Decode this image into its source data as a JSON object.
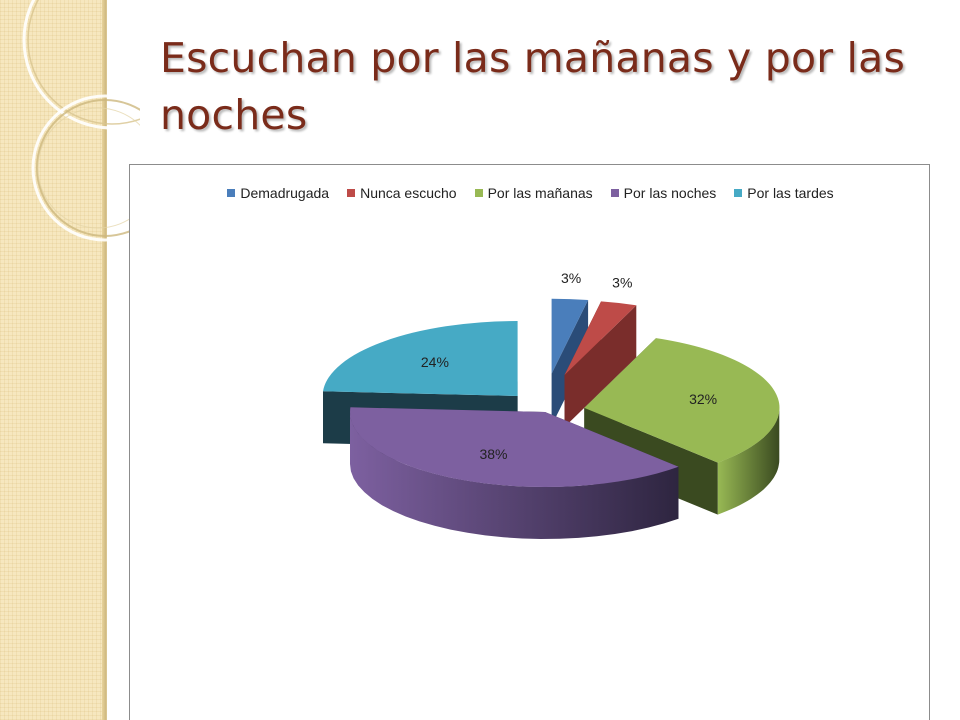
{
  "slide": {
    "title": "Escuchan por las mañanas y por las noches"
  },
  "chart_data": {
    "type": "pie",
    "style": "3d-exploded",
    "title": "",
    "legend_position": "top",
    "categories": [
      "Demadrugada",
      "Nunca escucho",
      "Por las mañanas",
      "Por las noches",
      "Por las tardes"
    ],
    "values": [
      3,
      3,
      32,
      38,
      24
    ],
    "labels": [
      "3%",
      "3%",
      "32%",
      "38%",
      "24%"
    ],
    "colors": [
      "#4a7ebb",
      "#be4b48",
      "#98b954",
      "#7d60a0",
      "#46aac5"
    ],
    "dark_colors": [
      "#2a4c78",
      "#7a2d2b",
      "#3a4a20",
      "#2e2540",
      "#1c3c48"
    ]
  }
}
